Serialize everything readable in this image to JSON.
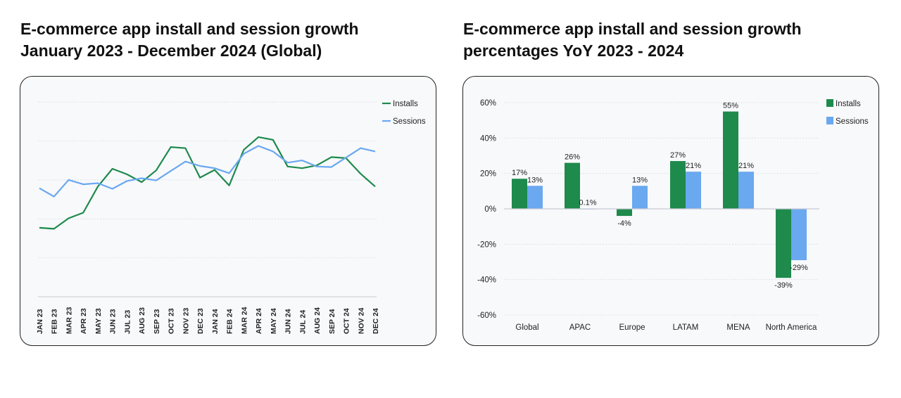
{
  "left_title": {
    "line1": "E-commerce app install and session growth",
    "line2": "January 2023 - December 2024 (Global)"
  },
  "right_title": {
    "line1": "E-commerce app install and session growth",
    "line2": "percentages YoY 2023 - 2024"
  },
  "colors": {
    "installs": "#1e8a4c",
    "sessions": "#6aa8f0",
    "grid": "#d9dde3",
    "axis": "#c8ccd2"
  },
  "chart_data": [
    {
      "type": "line",
      "title": "E-commerce app install and session growth January 2023 - December 2024 (Global)",
      "categories": [
        "JAN 23",
        "FEB 23",
        "MAR 23",
        "APR 23",
        "MAY 23",
        "JUN 23",
        "JUL 23",
        "AUG 23",
        "SEP 23",
        "OCT 23",
        "NOV 23",
        "DEC 23",
        "JAN 24",
        "FEB 24",
        "MAR 24",
        "APR 24",
        "MAY 24",
        "JUN 24",
        "JUL 24",
        "AUG 24",
        "SEP 24",
        "OCT 24",
        "NOV 24",
        "DEC 24"
      ],
      "series": [
        {
          "name": "Installs",
          "values": [
            2.4,
            2.2,
            4.1,
            5.1,
            9.8,
            13.0,
            12.0,
            10.6,
            12.7,
            16.9,
            16.7,
            11.4,
            12.8,
            10.0,
            16.4,
            18.7,
            18.2,
            13.4,
            13.1,
            13.6,
            15.1,
            14.9,
            12.1,
            9.8
          ]
        },
        {
          "name": "Sessions",
          "values": [
            9.5,
            8.0,
            11.0,
            10.2,
            10.4,
            9.4,
            10.8,
            11.3,
            10.9,
            12.6,
            14.3,
            13.5,
            13.1,
            12.2,
            15.7,
            17.1,
            16.1,
            14.1,
            14.5,
            13.4,
            13.3,
            15.0,
            16.7,
            16.1
          ]
        }
      ],
      "legend": [
        "Installs",
        "Sessions"
      ],
      "legend_position": "top-right",
      "ylim": [
        -10,
        25
      ],
      "grid": true,
      "xlabel": "",
      "ylabel": ""
    },
    {
      "type": "bar",
      "title": "E-commerce app install and session growth percentages YoY 2023 - 2024",
      "categories": [
        "Global",
        "APAC",
        "Europe",
        "LATAM",
        "MENA",
        "North America"
      ],
      "series": [
        {
          "name": "Installs",
          "values": [
            17,
            26,
            -4,
            27,
            55,
            -39
          ],
          "labels": [
            "17%",
            "26%",
            "-4%",
            "27%",
            "55%",
            "-39%"
          ]
        },
        {
          "name": "Sessions",
          "values": [
            13,
            0.1,
            13,
            21,
            21,
            -29
          ],
          "labels": [
            "13%",
            "0.1%",
            "13%",
            "21%",
            "21%",
            "-29%"
          ]
        }
      ],
      "legend": [
        "Installs",
        "Sessions"
      ],
      "legend_position": "top-right",
      "yticks": [
        60,
        40,
        20,
        0,
        -20,
        -40,
        -60
      ],
      "ytick_labels": [
        "60%",
        "40%",
        "20%",
        "0%",
        "-20%",
        "-40%",
        "-60%"
      ],
      "ylim": [
        -60,
        60
      ],
      "grid": true,
      "xlabel": "",
      "ylabel": ""
    }
  ]
}
